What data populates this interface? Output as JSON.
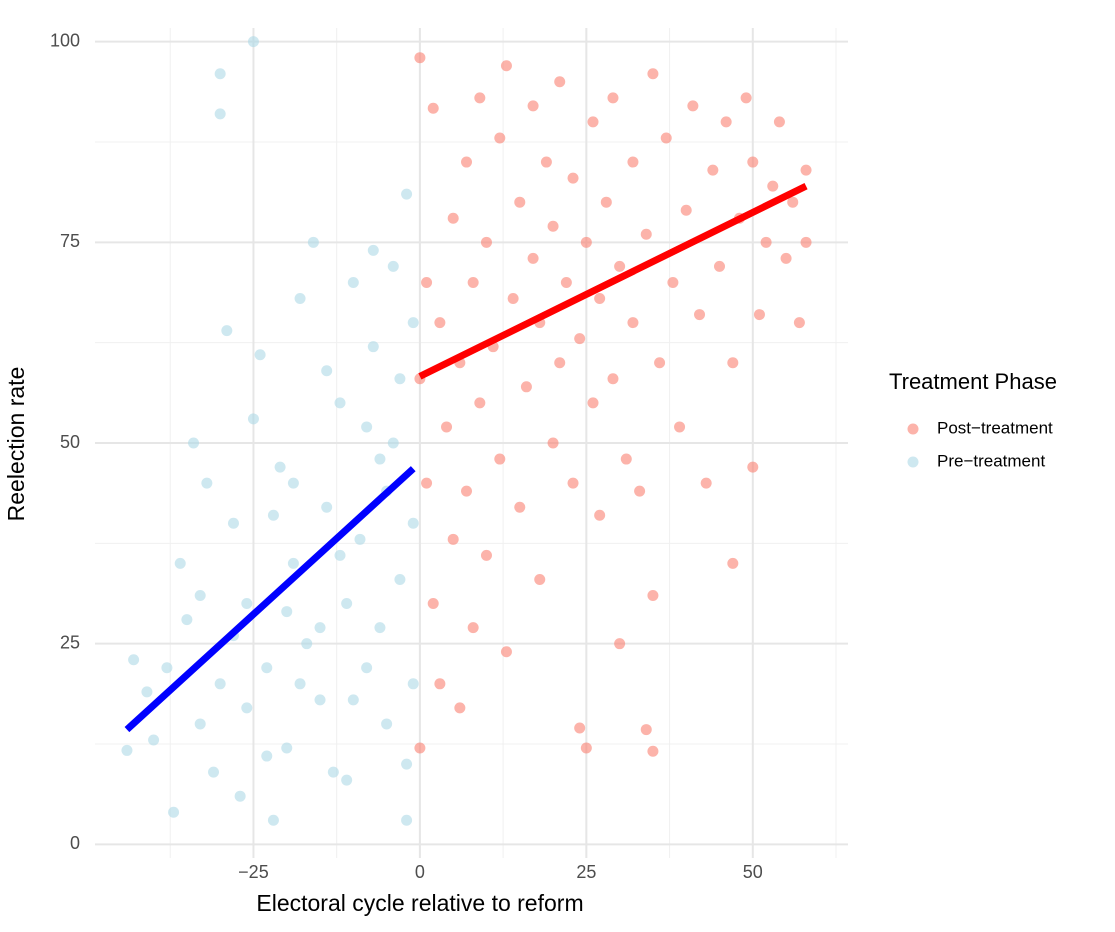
{
  "chart_data": {
    "type": "scatter",
    "x_label": "Electoral cycle relative to reform",
    "y_label": "Reelection rate",
    "legend_title": "Treatment Phase",
    "legend_position": "right",
    "grid": true,
    "xlim": [
      -48.8,
      64.3
    ],
    "ylim": [
      -1.7,
      101.7
    ],
    "xticks": [
      {
        "value": -25,
        "label": "−25"
      },
      0,
      25,
      50
    ],
    "yticks": [
      0,
      25,
      50,
      75,
      100
    ],
    "minor_xticks": [
      -37.5,
      -12.5,
      12.5,
      37.5,
      62.5
    ],
    "minor_yticks": [
      12.5,
      37.5,
      62.5,
      87.5
    ],
    "series": [
      {
        "name": "Post−treatment",
        "color": "#fa8072",
        "x": [
          0,
          0,
          0,
          1,
          1,
          2,
          2,
          3,
          3,
          4,
          5,
          5,
          6,
          6,
          7,
          7,
          8,
          8,
          9,
          9,
          10,
          10,
          11,
          12,
          12,
          13,
          13,
          14,
          15,
          15,
          16,
          17,
          17,
          18,
          18,
          19,
          20,
          20,
          21,
          21,
          22,
          23,
          23,
          24,
          24,
          25,
          25,
          26,
          26,
          27,
          27,
          28,
          29,
          29,
          30,
          30,
          31,
          32,
          32,
          33,
          34,
          34,
          35,
          35,
          35,
          36,
          37,
          38,
          39,
          40,
          41,
          42,
          43,
          44,
          45,
          46,
          47,
          47,
          48,
          49,
          50,
          50,
          51,
          52,
          53,
          54,
          55,
          56,
          57,
          58,
          58
        ],
        "values": [
          98,
          12,
          58,
          45,
          70,
          91.7,
          30,
          65,
          20,
          52,
          78,
          38,
          17,
          60,
          85,
          44,
          27,
          70,
          93,
          55,
          36,
          75,
          62,
          48,
          88,
          97,
          24,
          68,
          80,
          42,
          57,
          92,
          73,
          33,
          65,
          85,
          50,
          77,
          95,
          60,
          70,
          45,
          83,
          14.5,
          63,
          12,
          75,
          90,
          55,
          41,
          68,
          80,
          93,
          58,
          25,
          72,
          48,
          85,
          65,
          44,
          14.3,
          76,
          11.6,
          31,
          96,
          60,
          88,
          70,
          52,
          79,
          92,
          66,
          45,
          84,
          72,
          90,
          35,
          60,
          78,
          93,
          47,
          85,
          66,
          75,
          82,
          90,
          73,
          80,
          65,
          84,
          75
        ],
        "fit": {
          "color": "#ff0000",
          "x": [
            0,
            58
          ],
          "values": [
            58.3,
            82
          ]
        }
      },
      {
        "name": "Pre−treatment",
        "color": "#add8e6",
        "x": [
          -44,
          -43,
          -41,
          -40,
          -37,
          -36,
          -35,
          -34,
          -33,
          -32,
          -31,
          -30,
          -30,
          -30,
          -29,
          -28,
          -27,
          -26,
          -25,
          -25,
          -24,
          -23,
          -22,
          -21,
          -20,
          -19,
          -18,
          -17,
          -16,
          -15,
          -14,
          -13,
          -12,
          -11,
          -10,
          -9,
          -8,
          -7,
          -6,
          -5,
          -4,
          -3,
          -2,
          -2,
          -1,
          -1,
          -3,
          -5,
          -8,
          -12,
          -15,
          -18,
          -20,
          -22,
          -26,
          -28,
          -33,
          -38,
          -10,
          -6,
          -4,
          -14,
          -19,
          -23,
          -11,
          -7,
          -2,
          -1
        ],
        "values": [
          11.7,
          23,
          19,
          13,
          4,
          35,
          28,
          50,
          15,
          45,
          9,
          96,
          91,
          20,
          64,
          40,
          6,
          30,
          100,
          53,
          61,
          22,
          3,
          47,
          12,
          35,
          68,
          25,
          75,
          18,
          42,
          9,
          55,
          30,
          70,
          38,
          22,
          62,
          48,
          15,
          72,
          58,
          3,
          81,
          40,
          65,
          33,
          44,
          52,
          36,
          27,
          20,
          29,
          41,
          17,
          26,
          31,
          22,
          18,
          27,
          50,
          59,
          45,
          11,
          8,
          74,
          10,
          20
        ],
        "fit": {
          "color": "#0000ff",
          "x": [
            -44,
            -1
          ],
          "values": [
            14.3,
            46.8
          ]
        }
      }
    ]
  }
}
